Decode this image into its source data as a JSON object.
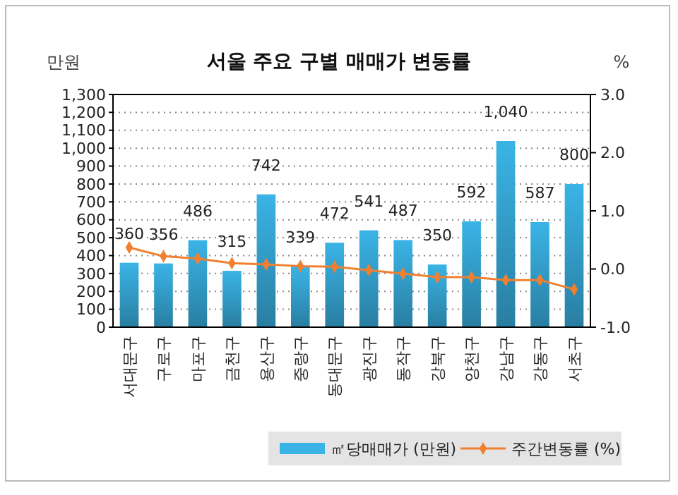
{
  "chart_data": {
    "type": "bar",
    "title": "서울 주요 구별 매매가 변동률",
    "ylabel": "만원",
    "y2label": "%",
    "categories": [
      "서대문구",
      "구로구",
      "마포구",
      "금천구",
      "용산구",
      "중랑구",
      "동대문구",
      "광진구",
      "동작구",
      "강북구",
      "양천구",
      "강남구",
      "강동구",
      "서초구"
    ],
    "series": [
      {
        "name": "㎡당매매가 (만원)",
        "color": "#3ab4e6",
        "values": [
          360,
          356,
          486,
          315,
          742,
          339,
          472,
          541,
          487,
          350,
          592,
          1040,
          587,
          800
        ],
        "value_labels": [
          "360",
          "356",
          "486",
          "315",
          "742",
          "339",
          "472",
          "541",
          "487",
          "350",
          "592",
          "1,040",
          "587",
          "800"
        ]
      },
      {
        "name": "주간변동률 (%)",
        "type": "line",
        "axis": "y2",
        "color": "#f08030",
        "marker": "diamond",
        "values": [
          0.37,
          0.22,
          0.18,
          0.1,
          0.08,
          0.05,
          0.04,
          -0.02,
          -0.08,
          -0.14,
          -0.14,
          -0.19,
          -0.19,
          -0.35
        ]
      }
    ],
    "ylim": [
      0,
      1300
    ],
    "yticks": [
      0,
      100,
      200,
      300,
      400,
      500,
      600,
      700,
      800,
      900,
      {
        "value": 1000,
        "label": "1,000"
      },
      {
        "value": 1100,
        "label": "1,100"
      },
      {
        "value": 1200,
        "label": "1,200"
      },
      {
        "value": 1300,
        "label": "1,300"
      }
    ],
    "y2lim": [
      -1,
      3
    ],
    "y2ticks": [
      {
        "value": -1,
        "label": "-1.0"
      },
      {
        "value": 0,
        "label": "0.0"
      },
      {
        "value": 1,
        "label": "1.0"
      },
      {
        "value": 2,
        "label": "2.0"
      },
      {
        "value": 3,
        "label": "3.0"
      }
    ],
    "grid": "y",
    "legend": "bottom right"
  }
}
